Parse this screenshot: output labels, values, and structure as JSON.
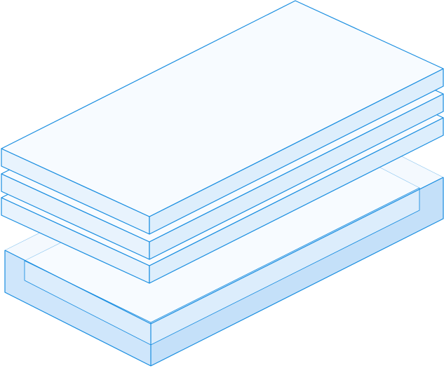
{
  "illustration": {
    "subject": "isometric-stacked-layers",
    "layer_count": 3,
    "has_tray": true
  },
  "colors": {
    "stroke": "#1a8ee0",
    "top_face": "#f7fbff",
    "front_face": "#e8f3fd",
    "side_face": "#ddeefc",
    "tray_top": "#f4f9fe",
    "tray_front": "#cfe6fb",
    "tray_side": "#c4e0f9",
    "tray_inner": "#dcedfc",
    "background": "#ffffff"
  }
}
